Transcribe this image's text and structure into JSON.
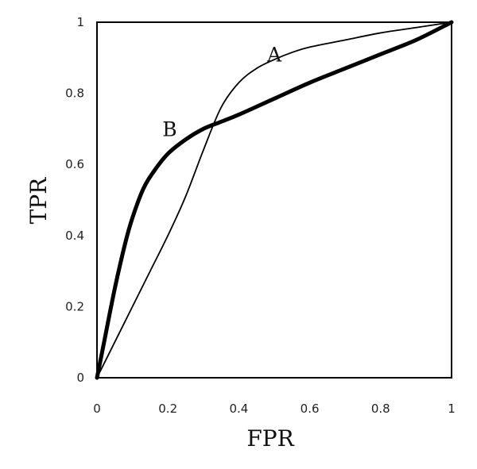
{
  "chart_data": {
    "type": "line",
    "title": "",
    "xlabel": "FPR",
    "ylabel": "TPR",
    "xlim": [
      0,
      1
    ],
    "ylim": [
      0,
      1
    ],
    "x_ticks": [
      "0",
      "0.2",
      "0.4",
      "0.6",
      "0.8",
      "1"
    ],
    "y_ticks": [
      "0",
      "0.2",
      "0.4",
      "0.6",
      "0.8",
      "1"
    ],
    "x_tick_values": [
      0,
      0.2,
      0.4,
      0.6,
      0.8,
      1
    ],
    "y_tick_values": [
      0,
      0.2,
      0.4,
      0.6,
      0.8,
      1
    ],
    "grid": false,
    "legend": "none",
    "series": [
      {
        "name": "A",
        "weight": "thin",
        "color": "#000000",
        "x": [
          0,
          0.05,
          0.1,
          0.15,
          0.2,
          0.25,
          0.3,
          0.35,
          0.4,
          0.45,
          0.5,
          0.55,
          0.6,
          0.7,
          0.8,
          0.9,
          1.0
        ],
        "y": [
          0,
          0.1,
          0.2,
          0.3,
          0.4,
          0.51,
          0.64,
          0.76,
          0.83,
          0.87,
          0.895,
          0.915,
          0.93,
          0.95,
          0.97,
          0.985,
          1.0
        ]
      },
      {
        "name": "B",
        "weight": "thick",
        "color": "#000000",
        "x": [
          0,
          0.02,
          0.05,
          0.08,
          0.1,
          0.13,
          0.16,
          0.2,
          0.25,
          0.3,
          0.35,
          0.4,
          0.5,
          0.6,
          0.7,
          0.8,
          0.9,
          1.0
        ],
        "y": [
          0,
          0.1,
          0.25,
          0.38,
          0.45,
          0.53,
          0.58,
          0.63,
          0.67,
          0.7,
          0.72,
          0.74,
          0.785,
          0.83,
          0.87,
          0.91,
          0.95,
          1.0
        ]
      }
    ],
    "annotations": [
      {
        "text": "A",
        "x": 0.5,
        "y": 0.91
      },
      {
        "text": "B",
        "x": 0.205,
        "y": 0.7
      }
    ]
  }
}
